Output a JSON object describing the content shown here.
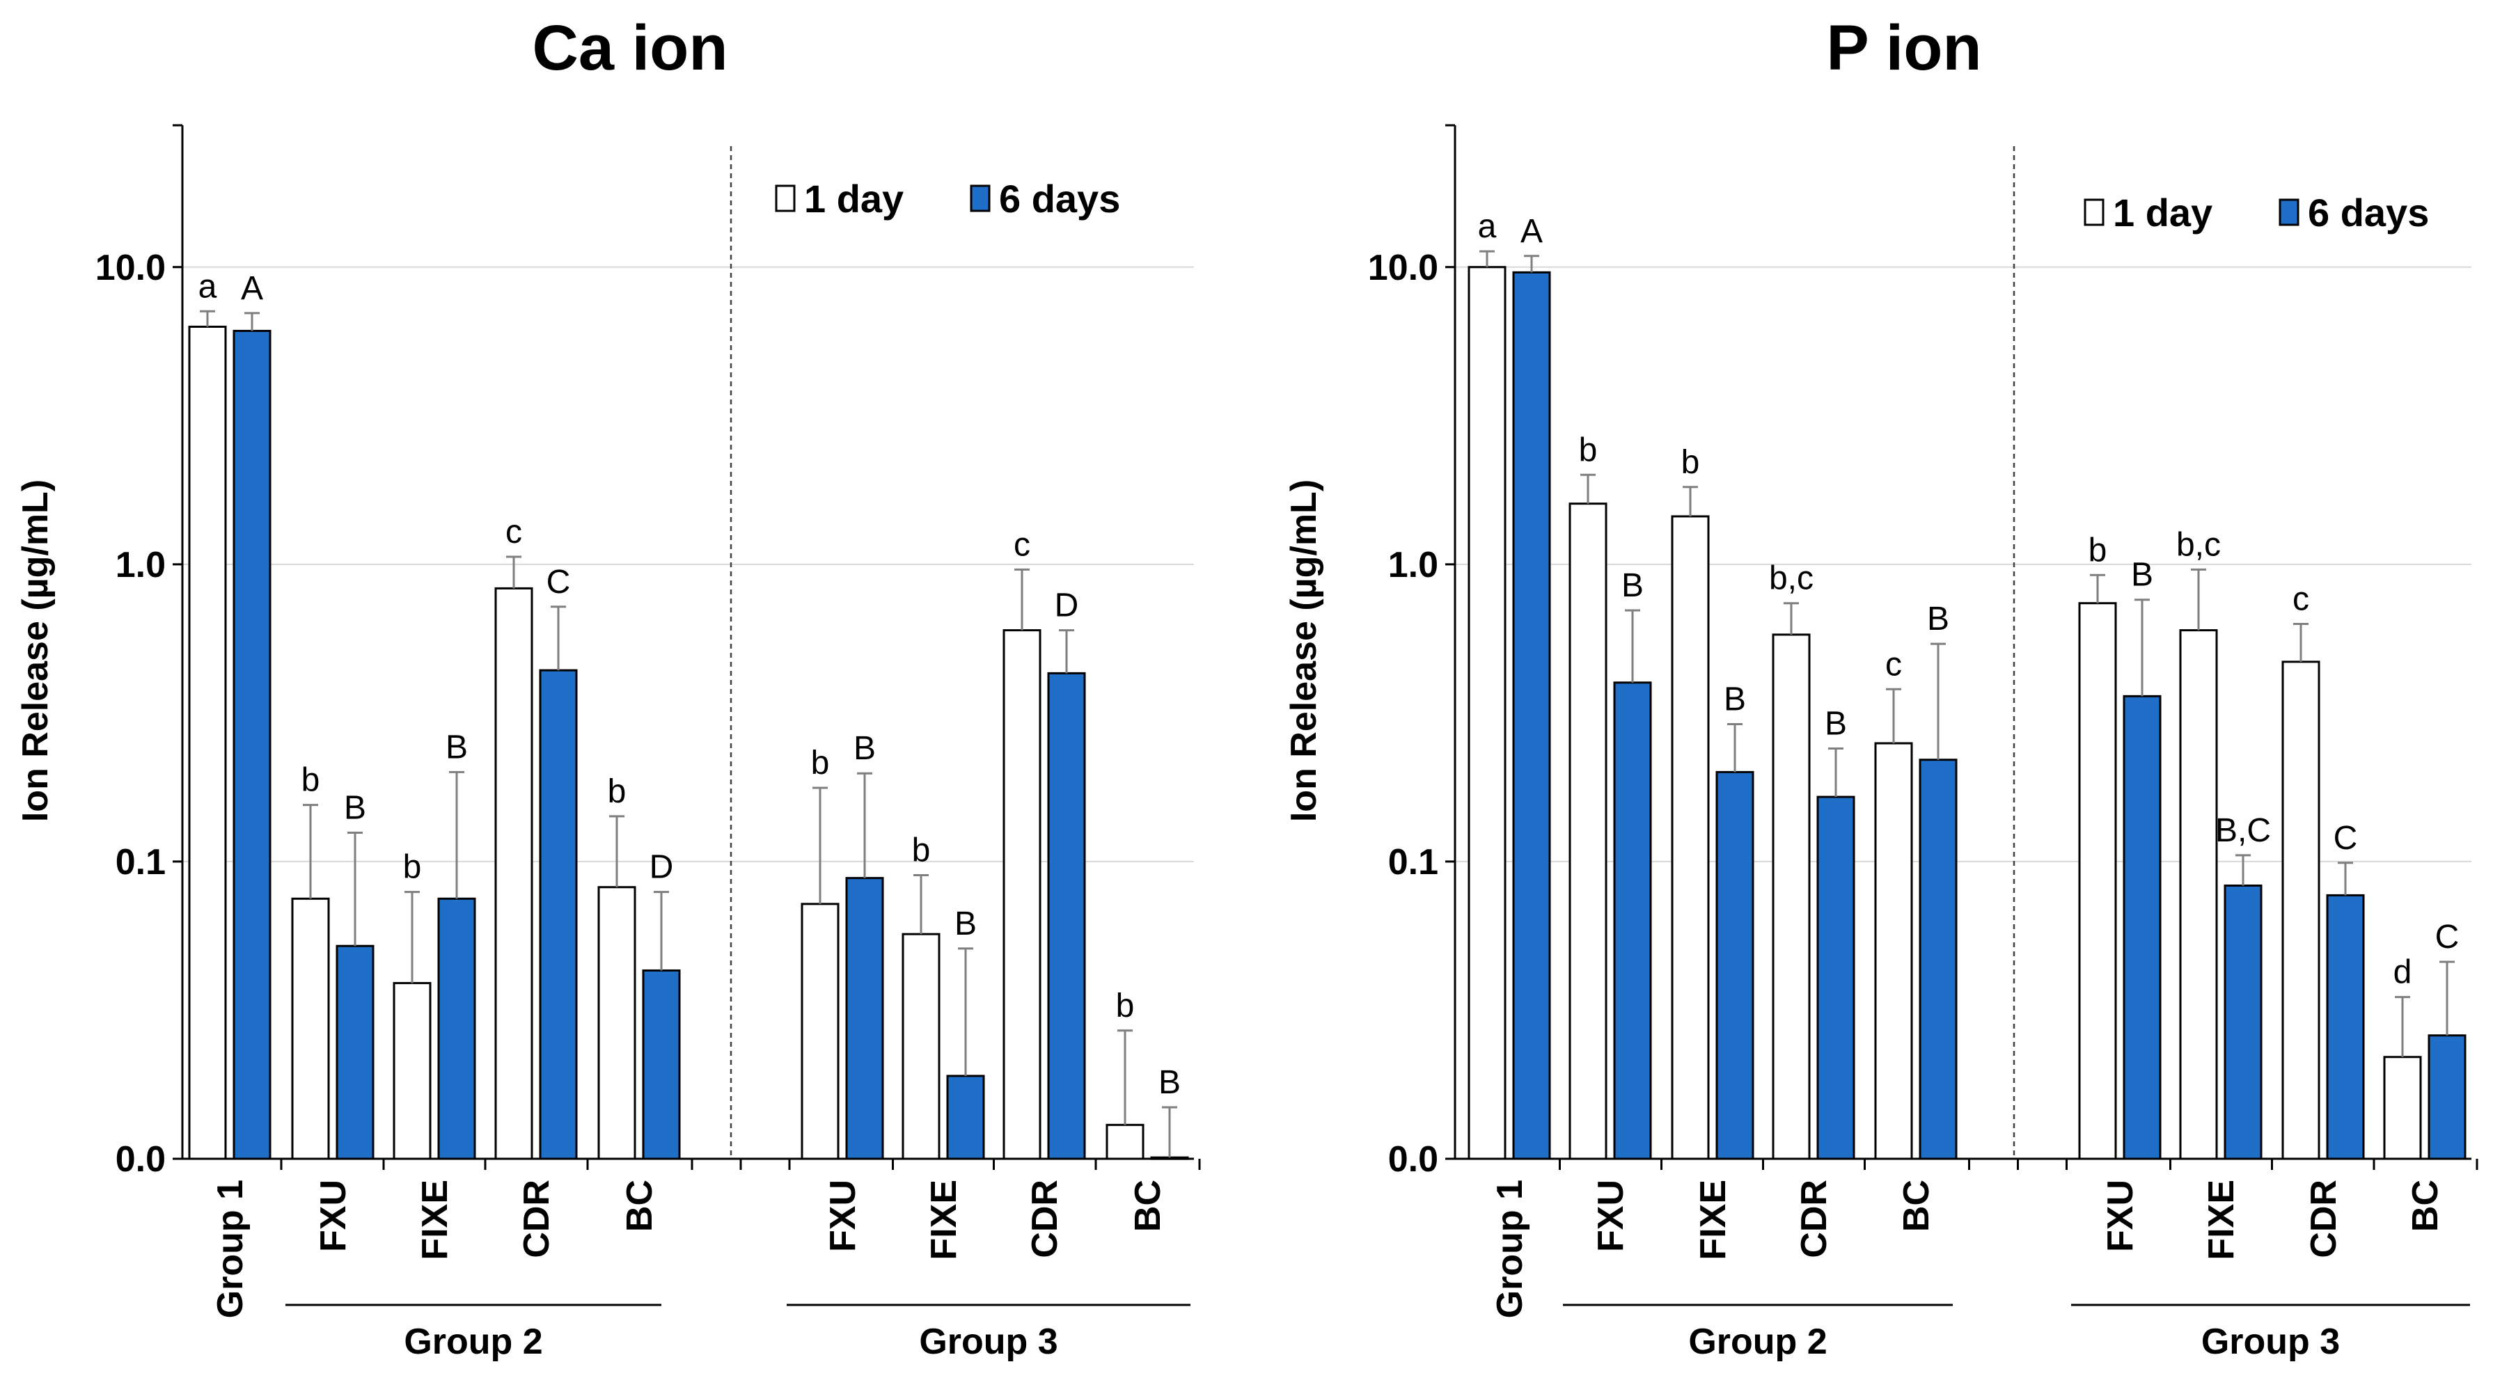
{
  "colors": {
    "series_1day_fill": "#ffffff",
    "series_6days_fill": "#1f6fc9",
    "bar_stroke": "#000000",
    "errorbar": "#7f7f7f",
    "gridline": "#d9d9d9",
    "divider": "#404040"
  },
  "chart_data": [
    {
      "type": "bar",
      "title": "Ca ion",
      "ylabel": "Ion Release (µg/mL)",
      "yscale": "log",
      "ylim": [
        0.01,
        30
      ],
      "yticks": [
        0.01,
        0.1,
        1.0,
        10.0
      ],
      "ytick_labels": [
        "0.0",
        "0.1",
        "1.0",
        "10.0"
      ],
      "grid": "horizontal major",
      "legend": "top-right",
      "categories": [
        "Group 1",
        "FXU",
        "FIXE",
        "CDR",
        "BC",
        "FXU",
        "FIXE",
        "CDR",
        "BC"
      ],
      "category_groups": [
        "",
        "Group 2",
        "Group 2",
        "Group 2",
        "Group 2",
        "Group 3",
        "Group 3",
        "Group 3",
        "Group 3"
      ],
      "groups": [
        {
          "label": "Group 2",
          "from": 1,
          "to": 4
        },
        {
          "label": "Group 3",
          "from": 5,
          "to": 8
        }
      ],
      "series": [
        {
          "name": "1 day",
          "values": [
            6.3,
            0.075,
            0.039,
            0.83,
            0.082,
            0.072,
            0.057,
            0.6,
            0.013
          ],
          "error": [
            0.8,
            0.08,
            0.04,
            0.23,
            0.06,
            0.105,
            0.033,
            0.36,
            0.014
          ],
          "letters": [
            "a",
            "b",
            "b",
            "c",
            "b",
            "b",
            "b",
            "c",
            "b"
          ]
        },
        {
          "name": "6 days",
          "values": [
            6.1,
            0.052,
            0.075,
            0.44,
            0.043,
            0.088,
            0.019,
            0.43,
            0.0101
          ],
          "error": [
            0.9,
            0.073,
            0.125,
            0.28,
            0.036,
            0.11,
            0.032,
            0.17,
            0.0048
          ],
          "letters": [
            "A",
            "B",
            "B",
            "C",
            "D",
            "B",
            "B",
            "D",
            "B"
          ]
        }
      ]
    },
    {
      "type": "bar",
      "title": "P ion",
      "ylabel": "Ion Release (µg/mL)",
      "yscale": "log",
      "ylim": [
        0.01,
        30
      ],
      "yticks": [
        0.01,
        0.1,
        1.0,
        10.0
      ],
      "ytick_labels": [
        "0.0",
        "0.1",
        "1.0",
        "10.0"
      ],
      "grid": "horizontal major",
      "legend": "top-right",
      "categories": [
        "Group 1",
        "FXU",
        "FIXE",
        "CDR",
        "BC",
        "FXU",
        "FIXE",
        "CDR",
        "BC"
      ],
      "category_groups": [
        "",
        "Group 2",
        "Group 2",
        "Group 2",
        "Group 2",
        "Group 3",
        "Group 3",
        "Group 3",
        "Group 3"
      ],
      "groups": [
        {
          "label": "Group 2",
          "from": 1,
          "to": 4
        },
        {
          "label": "Group 3",
          "from": 5,
          "to": 8
        }
      ],
      "series": [
        {
          "name": "1 day",
          "values": [
            10.0,
            1.6,
            1.45,
            0.58,
            0.25,
            0.74,
            0.6,
            0.47,
            0.022
          ],
          "error": [
            1.3,
            0.4,
            0.37,
            0.16,
            0.13,
            0.18,
            0.36,
            0.16,
            0.013
          ],
          "letters": [
            "a",
            "b",
            "b",
            "b,c",
            "c",
            "b",
            "b,c",
            "c",
            "d"
          ]
        },
        {
          "name": "6 days",
          "values": [
            9.6,
            0.4,
            0.2,
            0.165,
            0.22,
            0.36,
            0.083,
            0.077,
            0.026
          ],
          "error": [
            1.3,
            0.3,
            0.09,
            0.075,
            0.32,
            0.4,
            0.022,
            0.022,
            0.02
          ],
          "letters": [
            "A",
            "B",
            "B",
            "B",
            "B",
            "B",
            "B,C",
            "C",
            "C"
          ]
        }
      ]
    }
  ]
}
